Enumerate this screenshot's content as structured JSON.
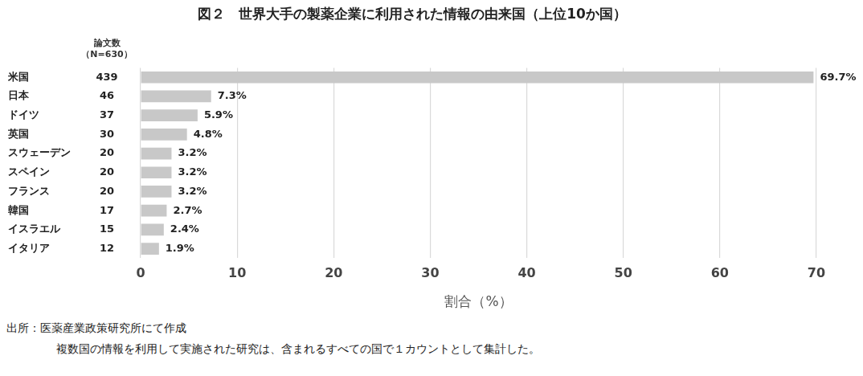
{
  "chart_data": {
    "type": "bar",
    "orientation": "horizontal",
    "title": "図２　世界大手の製薬企業に利用された情報の由来国（上位10か国）",
    "categories": [
      "米国",
      "日本",
      "ドイツ",
      "英国",
      "スウェーデン",
      "スペイン",
      "フランス",
      "韓国",
      "イスラエル",
      "イタリア"
    ],
    "values": [
      69.7,
      7.3,
      5.9,
      4.8,
      3.2,
      3.2,
      3.2,
      2.7,
      2.4,
      1.9
    ],
    "value_labels": [
      "69.7%",
      "7.3%",
      "5.9%",
      "4.8%",
      "3.2%",
      "3.2%",
      "3.2%",
      "2.7%",
      "2.4%",
      "1.9%"
    ],
    "data_labels": true,
    "color": "#c8c8c8",
    "paper_counts_header": [
      "論文数",
      "（N=630）"
    ],
    "paper_counts": [
      439,
      46,
      37,
      30,
      20,
      20,
      20,
      17,
      15,
      12
    ],
    "x_label": "割合（%）",
    "xlim": [
      0,
      70
    ],
    "xticks": [
      0,
      10,
      20,
      30,
      40,
      50,
      60,
      70
    ],
    "grid": true,
    "source": "出所：医薬産業政策研究所にて作成",
    "note": "複数国の情報を利用して実施された研究は、含まれるすべての国で１カウントとして集計した。"
  }
}
